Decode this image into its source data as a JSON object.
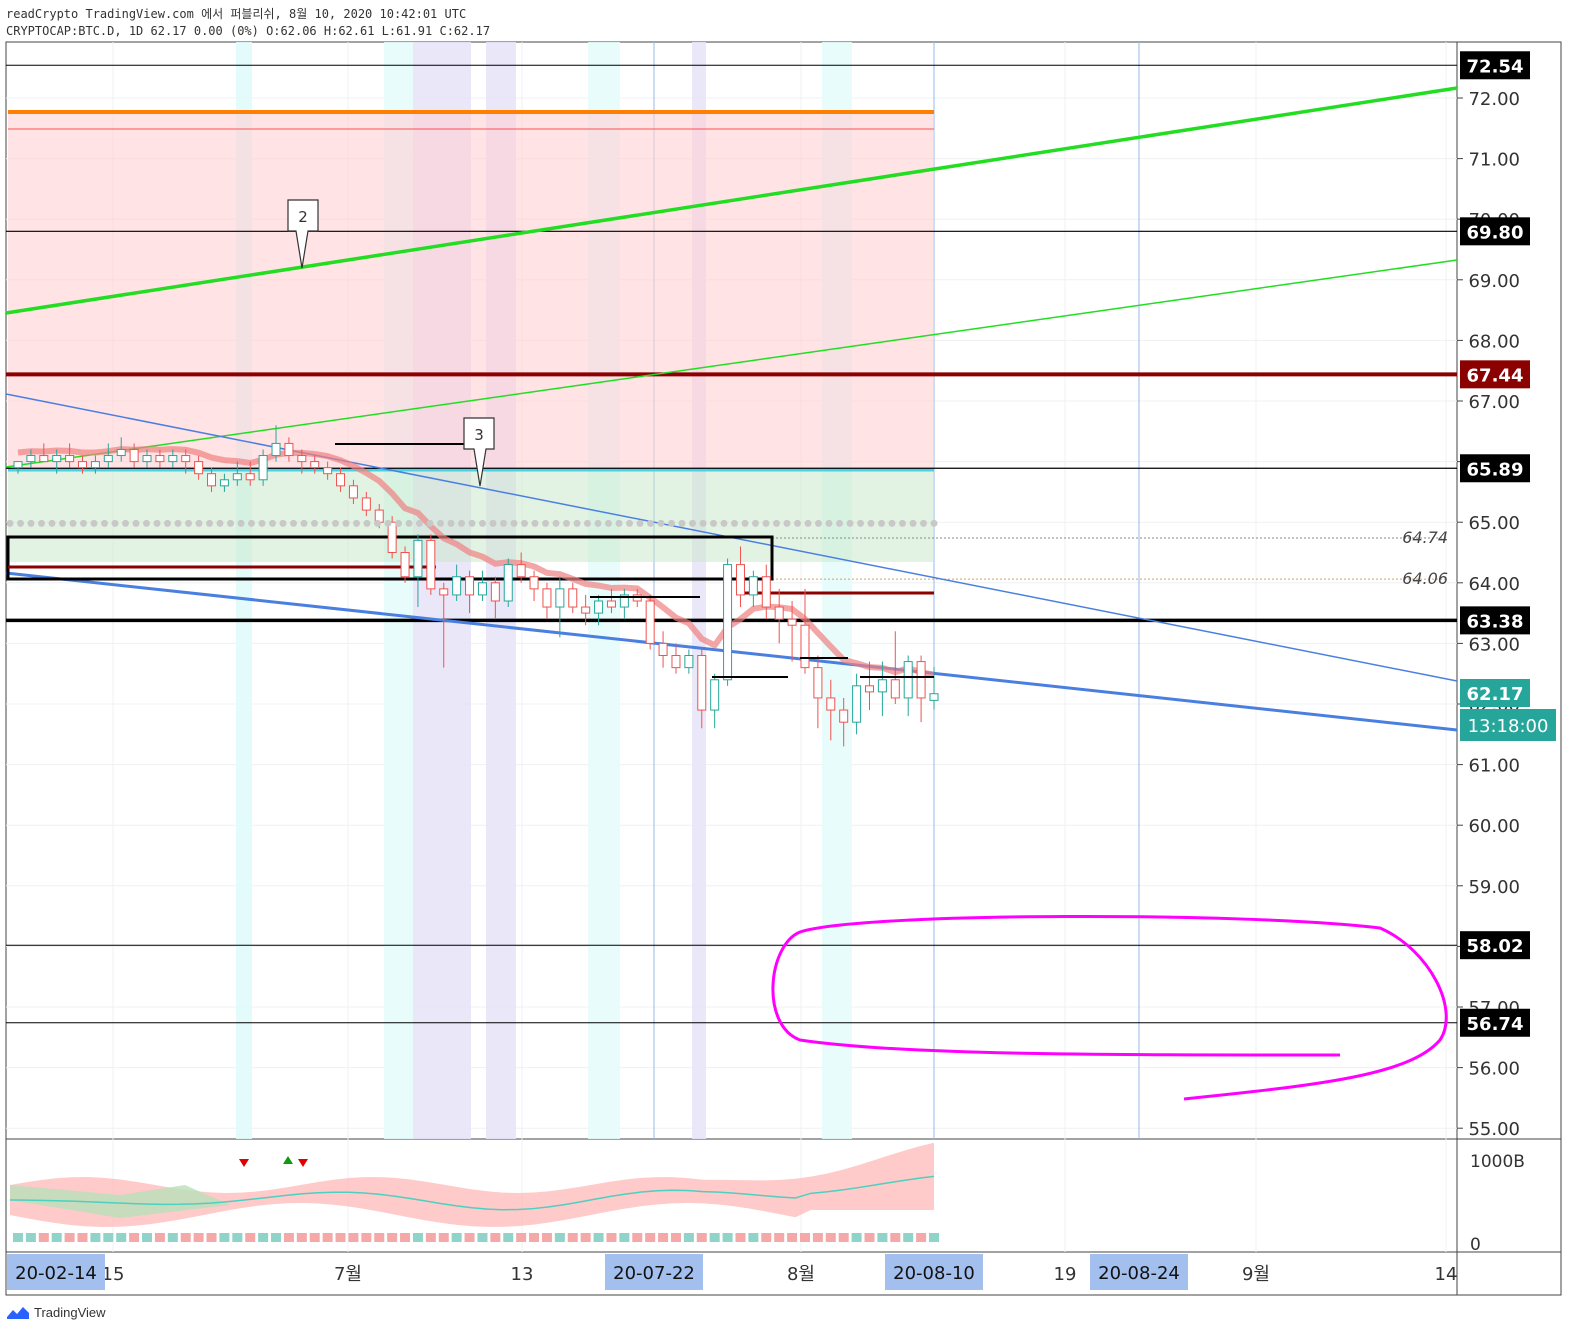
{
  "header": {
    "line1": "readCrypto TradingView.com 에서 퍼블리쉬, 8월 10, 2020 10:42:01 UTC",
    "line2": "CRYPTOCAP:BTC.D, 1D 62.17 0.00 (0%) O:62.06 H:62.61 L:61.91 C:62.17"
  },
  "footer": {
    "brand": "TradingView"
  },
  "colors": {
    "candle_up": "#26a69a",
    "candle_down": "#ef5350",
    "pink_line": "#ff00ff",
    "green_line": "#22dd22",
    "blue_line": "#4a7fe0",
    "dark_red": "#8b0000",
    "orange": "#ff8000",
    "cyan": "#4dd0e1",
    "countdown_bg": "#26a69a"
  },
  "chart_data": {
    "type": "candlestick",
    "symbol": "CRYPTOCAP:BTC.D",
    "timeframe": "1D",
    "ylim": [
      55,
      72.54
    ],
    "y_ticks": [
      "72.00",
      "71.00",
      "70.00",
      "69.00",
      "68.00",
      "67.00",
      "66.00",
      "65.00",
      "64.00",
      "63.00",
      "62.00",
      "61.00",
      "60.00",
      "59.00",
      "58.00",
      "57.00",
      "56.00",
      "55.00"
    ],
    "x_ticks": [
      "15",
      "7월",
      "13",
      "8월",
      "19",
      "9월",
      "14"
    ],
    "x_highlight_labels": [
      "20-02-14",
      "20-07-22",
      "20-08-10",
      "20-08-24"
    ],
    "price_labels": [
      {
        "value": 72.54,
        "text": "72.54"
      },
      {
        "value": 69.8,
        "text": "69.80"
      },
      {
        "value": 67.44,
        "text": "67.44"
      },
      {
        "value": 65.89,
        "text": "65.89"
      },
      {
        "value": 63.38,
        "text": "63.38"
      },
      {
        "value": 58.02,
        "text": "58.02"
      },
      {
        "value": 56.74,
        "text": "56.74"
      }
    ],
    "current_price": {
      "value": 62.17,
      "text": "62.17"
    },
    "countdown": "13:18:00",
    "level_annotations": [
      {
        "value": 64.74,
        "text": "64.74"
      },
      {
        "value": 64.06,
        "text": "64.06"
      }
    ],
    "callouts": [
      "2",
      "3"
    ],
    "volume_axis": [
      "1000B",
      "0"
    ],
    "candles": [
      [
        65.9,
        66.0,
        65.8,
        66.0
      ],
      [
        66.0,
        66.2,
        65.9,
        66.1
      ],
      [
        66.1,
        66.3,
        66.0,
        66.0
      ],
      [
        66.0,
        66.2,
        65.8,
        66.1
      ],
      [
        66.1,
        66.3,
        65.9,
        66.0
      ],
      [
        66.0,
        66.1,
        65.8,
        65.9
      ],
      [
        65.9,
        66.1,
        65.8,
        66.0
      ],
      [
        66.0,
        66.3,
        65.9,
        66.1
      ],
      [
        66.1,
        66.4,
        66.0,
        66.2
      ],
      [
        66.2,
        66.3,
        65.9,
        66.0
      ],
      [
        66.0,
        66.2,
        65.9,
        66.1
      ],
      [
        66.1,
        66.2,
        65.9,
        66.0
      ],
      [
        66.0,
        66.2,
        65.9,
        66.1
      ],
      [
        66.1,
        66.2,
        65.8,
        66.0
      ],
      [
        66.0,
        66.1,
        65.7,
        65.8
      ],
      [
        65.8,
        65.9,
        65.5,
        65.6
      ],
      [
        65.6,
        65.8,
        65.5,
        65.7
      ],
      [
        65.7,
        66.0,
        65.6,
        65.8
      ],
      [
        65.8,
        66.0,
        65.6,
        65.7
      ],
      [
        65.7,
        66.2,
        65.6,
        66.1
      ],
      [
        66.1,
        66.6,
        66.0,
        66.3
      ],
      [
        66.3,
        66.4,
        66.0,
        66.1
      ],
      [
        66.1,
        66.2,
        65.8,
        66.0
      ],
      [
        66.0,
        66.1,
        65.8,
        65.9
      ],
      [
        65.9,
        66.0,
        65.7,
        65.8
      ],
      [
        65.8,
        65.9,
        65.5,
        65.6
      ],
      [
        65.6,
        65.7,
        65.3,
        65.4
      ],
      [
        65.4,
        65.5,
        65.1,
        65.2
      ],
      [
        65.2,
        65.3,
        64.9,
        65.0
      ],
      [
        65.0,
        65.1,
        64.4,
        64.5
      ],
      [
        64.5,
        64.6,
        64.0,
        64.1
      ],
      [
        64.1,
        64.8,
        63.6,
        64.7
      ],
      [
        64.7,
        64.8,
        63.8,
        63.9
      ],
      [
        63.9,
        64.0,
        62.6,
        63.8
      ],
      [
        63.8,
        64.3,
        63.7,
        64.1
      ],
      [
        64.1,
        64.2,
        63.5,
        63.8
      ],
      [
        63.8,
        64.2,
        63.7,
        64.0
      ],
      [
        64.0,
        64.1,
        63.4,
        63.7
      ],
      [
        63.7,
        64.4,
        63.6,
        64.3
      ],
      [
        64.3,
        64.5,
        64.0,
        64.1
      ],
      [
        64.1,
        64.2,
        63.7,
        63.9
      ],
      [
        63.9,
        64.0,
        63.4,
        63.6
      ],
      [
        63.6,
        64.1,
        63.1,
        63.9
      ],
      [
        63.9,
        64.0,
        63.5,
        63.6
      ],
      [
        63.6,
        63.8,
        63.3,
        63.5
      ],
      [
        63.5,
        63.8,
        63.3,
        63.7
      ],
      [
        63.7,
        63.9,
        63.5,
        63.6
      ],
      [
        63.6,
        63.9,
        63.4,
        63.8
      ],
      [
        63.8,
        63.9,
        63.6,
        63.7
      ],
      [
        63.7,
        63.8,
        62.9,
        63.0
      ],
      [
        63.0,
        63.2,
        62.6,
        62.8
      ],
      [
        62.8,
        63.0,
        62.5,
        62.6
      ],
      [
        62.6,
        62.9,
        62.5,
        62.8
      ],
      [
        62.8,
        62.9,
        61.6,
        61.9
      ],
      [
        61.9,
        62.5,
        61.6,
        62.4
      ],
      [
        62.4,
        64.4,
        62.3,
        64.3
      ],
      [
        64.3,
        64.6,
        63.6,
        63.8
      ],
      [
        63.8,
        64.2,
        63.6,
        64.1
      ],
      [
        64.1,
        64.3,
        63.4,
        63.6
      ],
      [
        63.6,
        63.9,
        63.0,
        63.4
      ],
      [
        63.4,
        63.7,
        62.7,
        63.3
      ],
      [
        63.3,
        63.9,
        62.5,
        62.6
      ],
      [
        62.6,
        62.8,
        61.6,
        62.1
      ],
      [
        62.1,
        62.4,
        61.4,
        61.9
      ],
      [
        61.9,
        62.1,
        61.3,
        61.7
      ],
      [
        61.7,
        62.5,
        61.5,
        62.3
      ],
      [
        62.3,
        62.7,
        61.9,
        62.2
      ],
      [
        62.2,
        62.7,
        61.8,
        62.4
      ],
      [
        62.4,
        63.2,
        62.0,
        62.1
      ],
      [
        62.1,
        62.8,
        61.8,
        62.7
      ],
      [
        62.7,
        62.8,
        61.7,
        62.1
      ],
      [
        62.06,
        62.61,
        61.91,
        62.17
      ]
    ]
  }
}
